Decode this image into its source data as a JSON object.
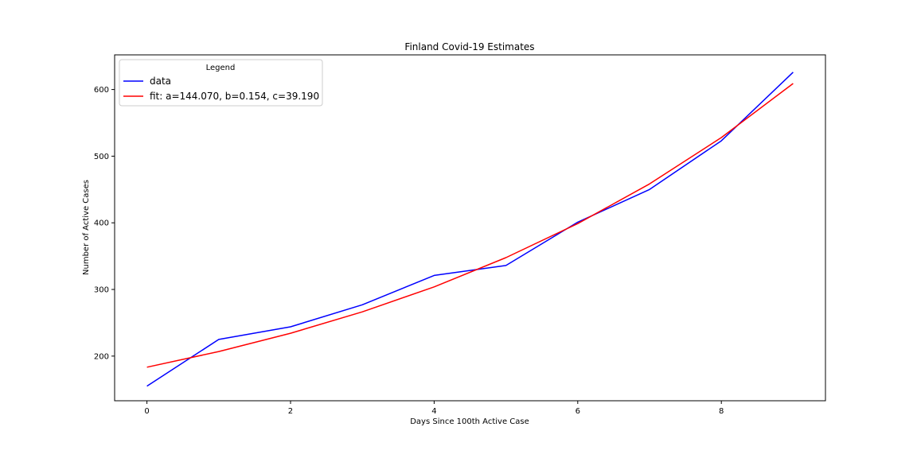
{
  "chart_data": {
    "type": "line",
    "title": "Finland Covid-19 Estimates",
    "xlabel": "Days Since 100th Active Case",
    "ylabel": "Number of Active Cases",
    "xlim": [
      -0.45,
      9.45
    ],
    "ylim": [
      133,
      652
    ],
    "xticks": [
      0,
      2,
      4,
      6,
      8
    ],
    "yticks": [
      200,
      300,
      400,
      500,
      600
    ],
    "grid": false,
    "legend": {
      "title": "Legend",
      "placement": "top-left"
    },
    "series": [
      {
        "name": "data",
        "color": "#0000ff",
        "x": [
          0,
          1,
          2,
          3,
          4,
          5,
          6,
          7,
          8,
          9
        ],
        "y": [
          155,
          225,
          244,
          277,
          321,
          336,
          401,
          450,
          523,
          626
        ]
      },
      {
        "name": "fit: a=144.070, b=0.154, c=39.190",
        "color": "#ff0000",
        "x": [
          0,
          1,
          2,
          3,
          4,
          5,
          6,
          7,
          8,
          9
        ],
        "y": [
          183.3,
          206.8,
          234.3,
          266.4,
          303.9,
          347.7,
          398.8,
          458.4,
          527.9,
          609.0
        ]
      }
    ]
  }
}
